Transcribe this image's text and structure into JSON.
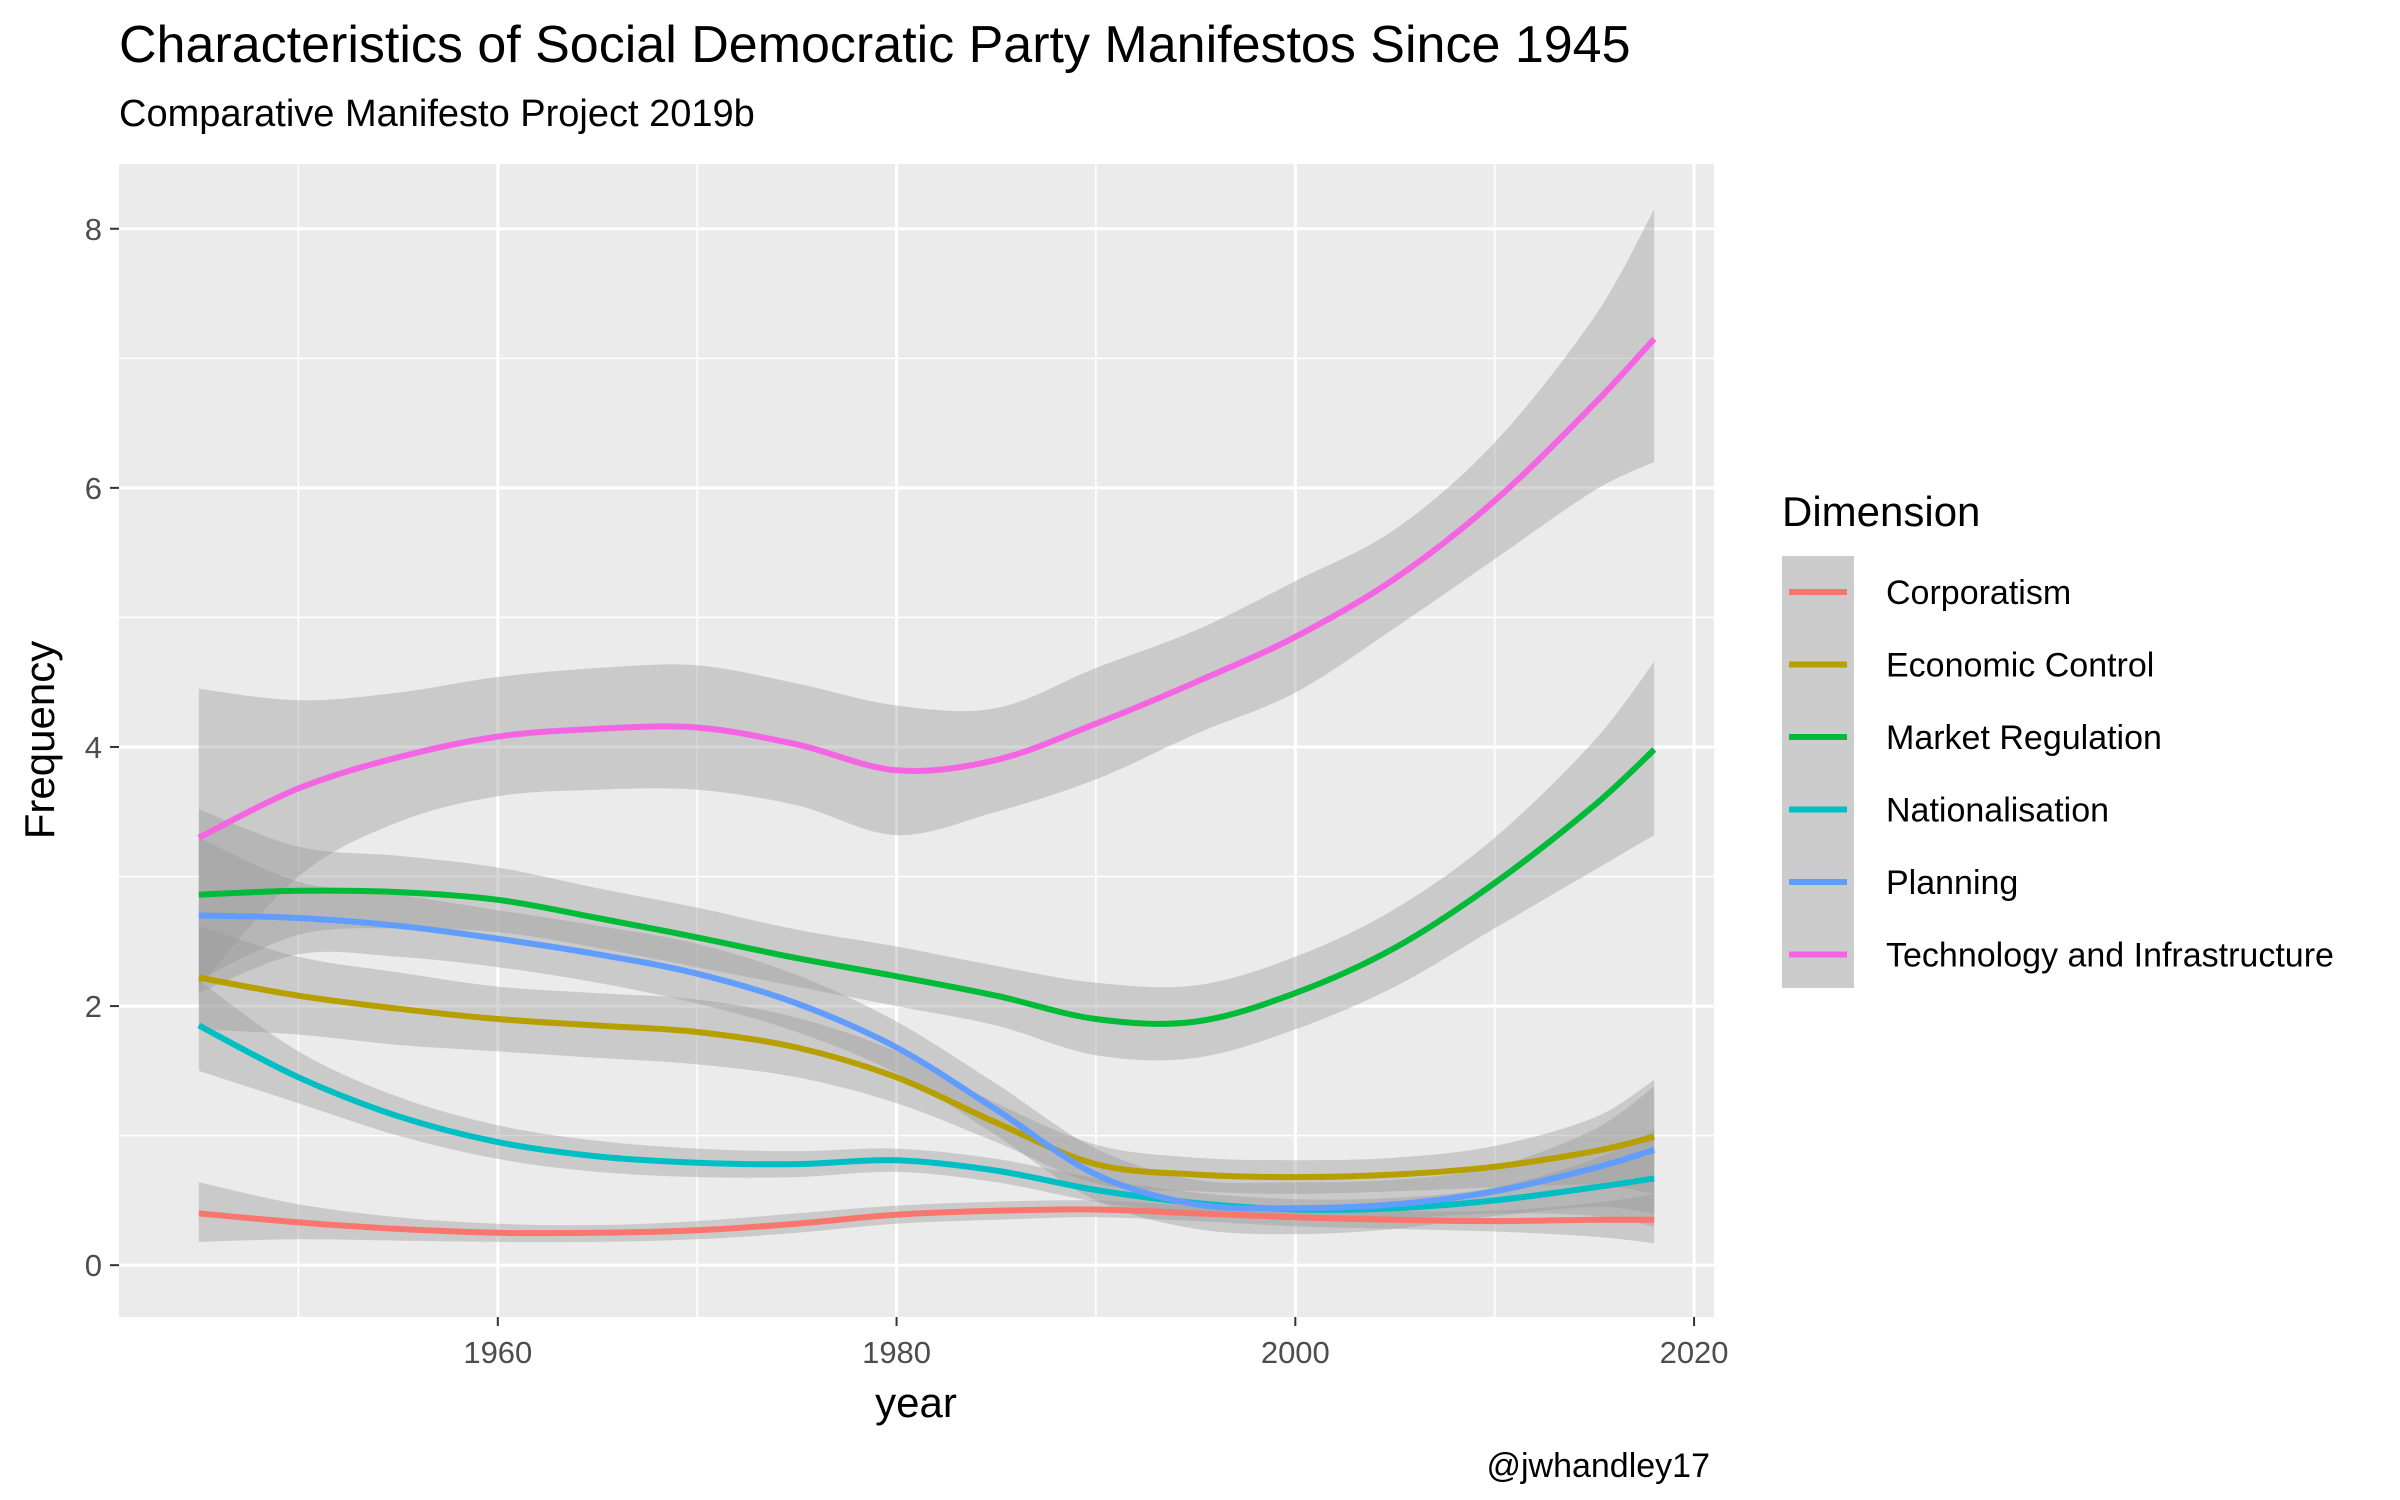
{
  "chart_data": {
    "type": "line",
    "title": "Characteristics of Social Democratic Party Manifestos Since 1945",
    "subtitle": "Comparative Manifesto Project 2019b",
    "xlabel": "year",
    "ylabel": "Frequency",
    "caption": "@jwhandley17",
    "xlim": [
      1941,
      2021
    ],
    "ylim": [
      -0.4,
      8.5
    ],
    "x_ticks": [
      1960,
      1980,
      2000,
      2020
    ],
    "y_ticks": [
      0,
      2,
      4,
      6,
      8
    ],
    "x_minor": [
      1950,
      1970,
      1990,
      2010
    ],
    "y_minor": [
      1,
      3,
      5,
      7
    ],
    "grid": true,
    "legend": {
      "title": "Dimension",
      "position": "right"
    },
    "panel_bg": "#ebebeb",
    "ribbon_color": "#999999",
    "series": [
      {
        "name": "Corporatism",
        "color": "#F8766D",
        "x": [
          1945,
          1950,
          1955,
          1960,
          1965,
          1970,
          1975,
          1980,
          1985,
          1990,
          1995,
          2000,
          2005,
          2010,
          2015,
          2018
        ],
        "y": [
          0.4,
          0.33,
          0.28,
          0.25,
          0.25,
          0.27,
          0.32,
          0.39,
          0.42,
          0.43,
          0.4,
          0.37,
          0.35,
          0.34,
          0.35,
          0.35
        ],
        "lower": [
          0.18,
          0.2,
          0.19,
          0.18,
          0.18,
          0.2,
          0.25,
          0.32,
          0.35,
          0.37,
          0.34,
          0.3,
          0.28,
          0.26,
          0.22,
          0.17
        ],
        "upper": [
          0.64,
          0.47,
          0.37,
          0.32,
          0.31,
          0.34,
          0.4,
          0.46,
          0.49,
          0.5,
          0.46,
          0.45,
          0.42,
          0.42,
          0.48,
          0.55
        ]
      },
      {
        "name": "Economic Control",
        "color": "#B79F00",
        "x": [
          1945,
          1950,
          1955,
          1960,
          1965,
          1970,
          1975,
          1980,
          1985,
          1990,
          1995,
          2000,
          2005,
          2010,
          2015,
          2018
        ],
        "y": [
          2.22,
          2.08,
          1.98,
          1.9,
          1.85,
          1.8,
          1.68,
          1.45,
          1.1,
          0.78,
          0.7,
          0.68,
          0.7,
          0.76,
          0.88,
          0.99
        ],
        "lower": [
          1.82,
          1.78,
          1.7,
          1.65,
          1.6,
          1.55,
          1.45,
          1.25,
          0.95,
          0.63,
          0.57,
          0.55,
          0.57,
          0.6,
          0.62,
          0.55
        ],
        "upper": [
          2.62,
          2.38,
          2.26,
          2.15,
          2.1,
          2.05,
          1.91,
          1.65,
          1.25,
          0.93,
          0.83,
          0.81,
          0.83,
          0.92,
          1.14,
          1.43
        ]
      },
      {
        "name": "Market Regulation",
        "color": "#00BA38",
        "x": [
          1945,
          1950,
          1955,
          1960,
          1965,
          1970,
          1975,
          1980,
          1985,
          1990,
          1995,
          2000,
          2005,
          2010,
          2015,
          2018
        ],
        "y": [
          2.86,
          2.89,
          2.88,
          2.82,
          2.68,
          2.53,
          2.37,
          2.23,
          2.08,
          1.9,
          1.88,
          2.1,
          2.45,
          2.95,
          3.55,
          3.98
        ],
        "lower": [
          2.2,
          2.55,
          2.6,
          2.57,
          2.45,
          2.3,
          2.15,
          2.0,
          1.85,
          1.62,
          1.6,
          1.82,
          2.15,
          2.6,
          3.05,
          3.32
        ],
        "upper": [
          3.52,
          3.23,
          3.16,
          3.07,
          2.91,
          2.76,
          2.59,
          2.46,
          2.31,
          2.18,
          2.16,
          2.38,
          2.75,
          3.3,
          4.05,
          4.66
        ]
      },
      {
        "name": "Nationalisation",
        "color": "#00BFC4",
        "x": [
          1945,
          1950,
          1955,
          1960,
          1965,
          1970,
          1975,
          1980,
          1985,
          1990,
          1995,
          2000,
          2005,
          2010,
          2015,
          2018
        ],
        "y": [
          1.85,
          1.45,
          1.15,
          0.95,
          0.84,
          0.79,
          0.78,
          0.81,
          0.73,
          0.58,
          0.48,
          0.43,
          0.44,
          0.5,
          0.6,
          0.67
        ],
        "lower": [
          1.5,
          1.25,
          1.0,
          0.82,
          0.72,
          0.68,
          0.68,
          0.72,
          0.64,
          0.49,
          0.4,
          0.35,
          0.36,
          0.4,
          0.38,
          0.3
        ],
        "upper": [
          2.2,
          1.65,
          1.3,
          1.08,
          0.96,
          0.9,
          0.88,
          0.9,
          0.82,
          0.67,
          0.56,
          0.51,
          0.52,
          0.6,
          0.82,
          1.04
        ]
      },
      {
        "name": "Planning",
        "color": "#619CFF",
        "x": [
          1945,
          1950,
          1955,
          1960,
          1965,
          1970,
          1975,
          1980,
          1985,
          1990,
          1995,
          2000,
          2005,
          2010,
          2015,
          2018
        ],
        "y": [
          2.7,
          2.68,
          2.62,
          2.52,
          2.4,
          2.25,
          2.02,
          1.68,
          1.2,
          0.7,
          0.47,
          0.44,
          0.47,
          0.57,
          0.75,
          0.89
        ],
        "lower": [
          2.1,
          2.4,
          2.38,
          2.3,
          2.18,
          2.02,
          1.8,
          1.48,
          1.0,
          0.5,
          0.28,
          0.24,
          0.28,
          0.38,
          0.45,
          0.4
        ],
        "upper": [
          3.3,
          2.96,
          2.86,
          2.74,
          2.62,
          2.48,
          2.24,
          1.88,
          1.4,
          0.9,
          0.66,
          0.64,
          0.66,
          0.76,
          1.05,
          1.38
        ]
      },
      {
        "name": "Technology and Infrastructure",
        "color": "#F564E3",
        "x": [
          1945,
          1950,
          1955,
          1960,
          1965,
          1970,
          1975,
          1980,
          1985,
          1990,
          1995,
          2000,
          2005,
          2010,
          2015,
          2018
        ],
        "y": [
          3.3,
          3.68,
          3.92,
          4.08,
          4.14,
          4.15,
          4.02,
          3.82,
          3.9,
          4.18,
          4.5,
          4.85,
          5.3,
          5.9,
          6.65,
          7.15
        ],
        "lower": [
          2.15,
          3.0,
          3.42,
          3.62,
          3.67,
          3.67,
          3.55,
          3.32,
          3.5,
          3.75,
          4.1,
          4.42,
          4.92,
          5.45,
          5.98,
          6.2
        ],
        "upper": [
          4.45,
          4.36,
          4.42,
          4.54,
          4.61,
          4.63,
          4.49,
          4.32,
          4.3,
          4.61,
          4.9,
          5.28,
          5.68,
          6.35,
          7.32,
          8.15
        ]
      }
    ]
  }
}
